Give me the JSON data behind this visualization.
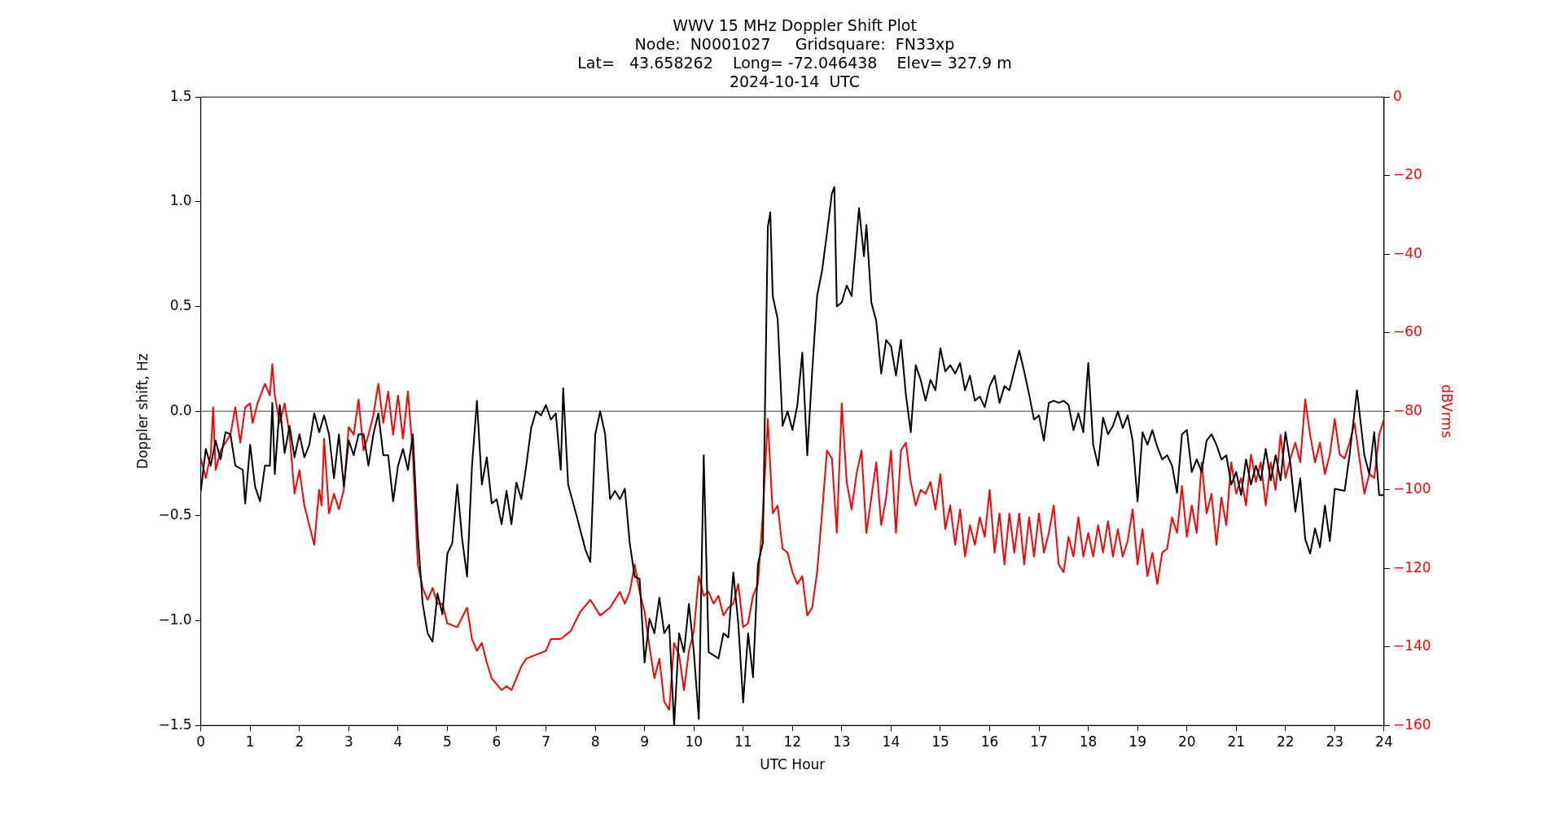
{
  "chart_data": {
    "type": "line",
    "title": "WWV 15 MHz Doppler Shift Plot",
    "subtitle": "Node:  N0001027     Gridsquare:  FN33xp\nLat=   43.658262    Long= -72.046438    Elev= 327.9 m\n2024-10-14  UTC",
    "xlabel": "UTC Hour",
    "ylabel": "Doppler shift, Hz",
    "y2label": "dBVrms",
    "xlim": [
      0,
      24
    ],
    "xticks": [
      0,
      1,
      2,
      3,
      4,
      5,
      6,
      7,
      8,
      9,
      10,
      11,
      12,
      13,
      14,
      15,
      16,
      17,
      18,
      19,
      20,
      21,
      22,
      23,
      24
    ],
    "ylim": [
      -1.5,
      1.5
    ],
    "yticks": [
      {
        "value": -1.5,
        "label": "−1.5"
      },
      {
        "value": -1,
        "label": "−1.0"
      },
      {
        "value": -0.5,
        "label": "−0.5"
      },
      {
        "value": 0,
        "label": "0.0"
      },
      {
        "value": 0.5,
        "label": "0.5"
      },
      {
        "value": 1,
        "label": "1.0"
      },
      {
        "value": 1.5,
        "label": "1.5"
      }
    ],
    "y2lim": [
      -160,
      0
    ],
    "y2ticks": [
      {
        "value": -160,
        "label": "−160"
      },
      {
        "value": -140,
        "label": "−140"
      },
      {
        "value": -120,
        "label": "−120"
      },
      {
        "value": -100,
        "label": "−100"
      },
      {
        "value": -80,
        "label": "−80"
      },
      {
        "value": -60,
        "label": "−60"
      },
      {
        "value": -40,
        "label": "−40"
      },
      {
        "value": -20,
        "label": "−20"
      },
      0
    ],
    "grid": false,
    "legend": false,
    "marker": "none",
    "line_style": "solid",
    "ref_lines": [
      {
        "axis": "y",
        "value": 0,
        "color": "#808080"
      }
    ],
    "series": [
      {
        "color": "#000000",
        "x": [
          0,
          0.1,
          0.2,
          0.3,
          0.4,
          0.5,
          0.6,
          0.7,
          0.85,
          0.9,
          1.0,
          1.1,
          1.2,
          1.3,
          1.4,
          1.45,
          1.5,
          1.6,
          1.7,
          1.8,
          1.9,
          2.0,
          2.1,
          2.2,
          2.3,
          2.4,
          2.5,
          2.6,
          2.7,
          2.8,
          2.9,
          3.0,
          3.1,
          3.2,
          3.3,
          3.4,
          3.5,
          3.6,
          3.7,
          3.8,
          3.9,
          4.0,
          4.1,
          4.2,
          4.3,
          4.4,
          4.5,
          4.6,
          4.7,
          4.8,
          4.9,
          5.0,
          5.1,
          5.2,
          5.3,
          5.4,
          5.5,
          5.6,
          5.7,
          5.8,
          5.9,
          6.0,
          6.1,
          6.2,
          6.3,
          6.4,
          6.5,
          6.6,
          6.7,
          6.8,
          6.9,
          7.0,
          7.1,
          7.2,
          7.3,
          7.35,
          7.45,
          7.6,
          7.8,
          7.9,
          8.0,
          8.1,
          8.2,
          8.3,
          8.4,
          8.5,
          8.6,
          8.7,
          8.8,
          8.9,
          9.0,
          9.1,
          9.2,
          9.3,
          9.4,
          9.5,
          9.6,
          9.7,
          9.8,
          9.9,
          10.0,
          10.1,
          10.2,
          10.3,
          10.5,
          10.6,
          10.7,
          10.8,
          10.9,
          11.0,
          11.1,
          11.2,
          11.3,
          11.4,
          11.5,
          11.55,
          11.6,
          11.7,
          11.8,
          11.9,
          12.0,
          12.1,
          12.2,
          12.3,
          12.4,
          12.5,
          12.6,
          12.7,
          12.8,
          12.85,
          12.9,
          13.0,
          13.1,
          13.2,
          13.3,
          13.35,
          13.45,
          13.5,
          13.6,
          13.7,
          13.8,
          13.9,
          14.0,
          14.1,
          14.2,
          14.3,
          14.4,
          14.5,
          14.6,
          14.7,
          14.8,
          14.9,
          15.0,
          15.1,
          15.2,
          15.3,
          15.4,
          15.5,
          15.6,
          15.7,
          15.8,
          15.9,
          16.0,
          16.1,
          16.2,
          16.3,
          16.4,
          16.6,
          16.7,
          16.8,
          16.9,
          17.0,
          17.1,
          17.2,
          17.3,
          17.4,
          17.5,
          17.6,
          17.7,
          17.8,
          17.9,
          18.0,
          18.1,
          18.2,
          18.3,
          18.4,
          18.5,
          18.6,
          18.7,
          18.8,
          18.9,
          19.0,
          19.1,
          19.2,
          19.3,
          19.4,
          19.5,
          19.6,
          19.7,
          19.8,
          19.9,
          20.0,
          20.1,
          20.2,
          20.3,
          20.4,
          20.5,
          20.6,
          20.7,
          20.8,
          20.9,
          21.0,
          21.1,
          21.2,
          21.3,
          21.4,
          21.5,
          21.6,
          21.7,
          21.8,
          21.9,
          22.0,
          22.1,
          22.2,
          22.3,
          22.4,
          22.5,
          22.6,
          22.7,
          22.8,
          22.9,
          23.0,
          23.2,
          23.3,
          23.45,
          23.6,
          23.7,
          23.8,
          23.9,
          24.0
        ],
        "values": [
          -0.38,
          -0.18,
          -0.26,
          -0.14,
          -0.23,
          -0.1,
          -0.11,
          -0.26,
          -0.28,
          -0.44,
          -0.16,
          -0.36,
          -0.43,
          -0.26,
          -0.26,
          0.04,
          -0.3,
          0.03,
          -0.2,
          -0.07,
          -0.22,
          -0.11,
          -0.22,
          -0.16,
          -0.01,
          -0.1,
          -0.02,
          -0.11,
          -0.32,
          -0.11,
          -0.36,
          -0.14,
          -0.21,
          -0.11,
          -0.11,
          -0.26,
          -0.11,
          -0.01,
          -0.21,
          -0.21,
          -0.43,
          -0.26,
          -0.18,
          -0.28,
          -0.11,
          -0.59,
          -0.92,
          -1.06,
          -1.1,
          -0.87,
          -0.97,
          -0.68,
          -0.63,
          -0.35,
          -0.61,
          -0.79,
          -0.26,
          0.05,
          -0.35,
          -0.22,
          -0.44,
          -0.42,
          -0.54,
          -0.38,
          -0.54,
          -0.34,
          -0.42,
          -0.26,
          -0.08,
          0.0,
          -0.02,
          0.03,
          -0.04,
          -0.01,
          -0.28,
          0.11,
          -0.35,
          -0.48,
          -0.66,
          -0.72,
          -0.11,
          0.0,
          -0.11,
          -0.42,
          -0.38,
          -0.42,
          -0.37,
          -0.63,
          -0.79,
          -0.8,
          -1.2,
          -0.99,
          -1.06,
          -0.89,
          -1.06,
          -1.02,
          -1.5,
          -1.06,
          -1.15,
          -0.92,
          -1.15,
          -1.47,
          -0.21,
          -1.15,
          -1.18,
          -1.06,
          -1.08,
          -0.77,
          -1.01,
          -1.39,
          -1.06,
          -1.27,
          -0.73,
          -0.63,
          0.88,
          0.95,
          0.55,
          0.44,
          -0.07,
          0.0,
          -0.09,
          0.03,
          0.28,
          -0.21,
          0.19,
          0.55,
          0.67,
          0.85,
          1.04,
          1.07,
          0.5,
          0.52,
          0.6,
          0.55,
          0.83,
          0.97,
          0.74,
          0.89,
          0.52,
          0.43,
          0.18,
          0.34,
          0.31,
          0.17,
          0.34,
          0.08,
          -0.1,
          0.22,
          0.15,
          0.05,
          0.15,
          0.1,
          0.3,
          0.19,
          0.22,
          0.18,
          0.23,
          0.1,
          0.17,
          0.05,
          0.07,
          0.02,
          0.12,
          0.17,
          0.04,
          0.12,
          0.1,
          0.29,
          0.19,
          0.08,
          -0.04,
          -0.02,
          -0.14,
          0.04,
          0.05,
          0.04,
          0.05,
          0.03,
          -0.09,
          -0.01,
          -0.1,
          0.23,
          -0.16,
          -0.26,
          -0.03,
          -0.11,
          -0.07,
          0.0,
          -0.08,
          -0.02,
          -0.14,
          -0.43,
          -0.1,
          -0.16,
          -0.09,
          -0.17,
          -0.23,
          -0.21,
          -0.26,
          -0.39,
          -0.11,
          -0.09,
          -0.29,
          -0.23,
          -0.29,
          -0.14,
          -0.11,
          -0.16,
          -0.23,
          -0.21,
          -0.35,
          -0.29,
          -0.4,
          -0.23,
          -0.35,
          -0.26,
          -0.33,
          -0.18,
          -0.33,
          -0.21,
          -0.33,
          -0.1,
          -0.25,
          -0.48,
          -0.32,
          -0.61,
          -0.68,
          -0.56,
          -0.65,
          -0.45,
          -0.62,
          -0.37,
          -0.38,
          -0.21,
          0.1,
          -0.21,
          -0.3,
          -0.1,
          -0.4,
          -0.4
        ]
      },
      {
        "color": "#ff0000",
        "axis": "y2",
        "x": [
          0,
          0.1,
          0.2,
          0.25,
          0.3,
          0.4,
          0.5,
          0.6,
          0.7,
          0.8,
          0.9,
          1.0,
          1.05,
          1.15,
          1.3,
          1.4,
          1.45,
          1.5,
          1.6,
          1.7,
          1.8,
          1.9,
          2.0,
          2.1,
          2.2,
          2.3,
          2.4,
          2.45,
          2.5,
          2.6,
          2.7,
          2.8,
          2.9,
          3.0,
          3.1,
          3.2,
          3.3,
          3.4,
          3.5,
          3.6,
          3.7,
          3.8,
          3.9,
          4.0,
          4.1,
          4.2,
          4.3,
          4.4,
          4.5,
          4.6,
          4.7,
          4.8,
          4.9,
          5.0,
          5.2,
          5.4,
          5.5,
          5.6,
          5.7,
          5.8,
          5.9,
          6.1,
          6.2,
          6.3,
          6.5,
          6.6,
          6.8,
          7.0,
          7.1,
          7.3,
          7.5,
          7.7,
          7.9,
          8.1,
          8.3,
          8.5,
          8.6,
          8.7,
          8.8,
          8.9,
          9.0,
          9.1,
          9.2,
          9.3,
          9.4,
          9.5,
          9.6,
          9.7,
          9.8,
          9.9,
          10.0,
          10.1,
          10.2,
          10.3,
          10.4,
          10.5,
          10.6,
          10.7,
          10.8,
          10.9,
          11.0,
          11.1,
          11.2,
          11.3,
          11.4,
          11.5,
          11.6,
          11.7,
          11.8,
          11.9,
          12.0,
          12.1,
          12.2,
          12.3,
          12.4,
          12.5,
          12.6,
          12.7,
          12.8,
          12.9,
          13.0,
          13.1,
          13.2,
          13.3,
          13.4,
          13.5,
          13.6,
          13.7,
          13.8,
          13.9,
          14.0,
          14.1,
          14.2,
          14.3,
          14.4,
          14.5,
          14.6,
          14.7,
          14.8,
          14.9,
          15.0,
          15.1,
          15.2,
          15.3,
          15.4,
          15.5,
          15.6,
          15.7,
          15.8,
          15.9,
          16.0,
          16.1,
          16.2,
          16.3,
          16.4,
          16.5,
          16.6,
          16.7,
          16.8,
          16.9,
          17.0,
          17.1,
          17.2,
          17.3,
          17.4,
          17.5,
          17.6,
          17.7,
          17.8,
          17.9,
          18.0,
          18.1,
          18.2,
          18.3,
          18.4,
          18.5,
          18.6,
          18.7,
          18.8,
          18.9,
          19.0,
          19.1,
          19.2,
          19.3,
          19.4,
          19.5,
          19.6,
          19.7,
          19.8,
          19.9,
          20.0,
          20.1,
          20.2,
          20.3,
          20.4,
          20.5,
          20.6,
          20.7,
          20.8,
          20.9,
          21.0,
          21.1,
          21.2,
          21.3,
          21.4,
          21.5,
          21.6,
          21.7,
          21.8,
          21.9,
          22.0,
          22.1,
          22.2,
          22.3,
          22.4,
          22.5,
          22.6,
          22.7,
          22.8,
          22.9,
          23.0,
          23.1,
          23.2,
          23.3,
          23.4,
          23.5,
          23.6,
          23.7,
          23.8,
          23.9,
          24.0
        ],
        "values": [
          -92,
          -97,
          -91,
          -79,
          -95,
          -90,
          -88,
          -86,
          -79,
          -88,
          -79,
          -78,
          -83,
          -78,
          -73,
          -76,
          -68,
          -76,
          -83,
          -78,
          -86,
          -101,
          -95,
          -104,
          -109,
          -114,
          -100,
          -104,
          -87,
          -106,
          -101,
          -105,
          -100,
          -84,
          -86,
          -77,
          -90,
          -86,
          -81,
          -73,
          -83,
          -75,
          -86,
          -76,
          -87,
          -75,
          -91,
          -119,
          -125,
          -128,
          -125,
          -129,
          -129,
          -134,
          -135,
          -130,
          -138,
          -141,
          -139,
          -144,
          -148,
          -151,
          -150,
          -151,
          -145,
          -143,
          -142,
          -141,
          -138,
          -138,
          -136,
          -131,
          -128,
          -132,
          -130,
          -126,
          -129,
          -126,
          -119,
          -126,
          -131,
          -140,
          -148,
          -143,
          -154,
          -156,
          -139,
          -142,
          -151,
          -141,
          -136,
          -122,
          -127,
          -126,
          -129,
          -127,
          -132,
          -130,
          -129,
          -124,
          -135,
          -134,
          -127,
          -124,
          -106,
          -82,
          -106,
          -104,
          -115,
          -116,
          -121,
          -124,
          -122,
          -132,
          -130,
          -121,
          -106,
          -90,
          -92,
          -111,
          -78,
          -98,
          -105,
          -96,
          -90,
          -111,
          -102,
          -93,
          -109,
          -102,
          -90,
          -111,
          -90,
          -88,
          -98,
          -104,
          -100,
          -101,
          -98,
          -105,
          -96,
          -110,
          -104,
          -114,
          -105,
          -117,
          -109,
          -114,
          -107,
          -112,
          -100,
          -116,
          -106,
          -119,
          -106,
          -116,
          -106,
          -119,
          -107,
          -117,
          -106,
          -116,
          -111,
          -104,
          -119,
          -121,
          -112,
          -117,
          -107,
          -117,
          -111,
          -117,
          -109,
          -116,
          -108,
          -117,
          -110,
          -117,
          -113,
          -105,
          -119,
          -110,
          -122,
          -116,
          -124,
          -116,
          -115,
          -107,
          -111,
          -99,
          -112,
          -104,
          -111,
          -93,
          -106,
          -101,
          -114,
          -102,
          -109,
          -93,
          -101,
          -97,
          -104,
          -91,
          -98,
          -93,
          -104,
          -93,
          -100,
          -86,
          -97,
          -92,
          -88,
          -93,
          -77,
          -86,
          -93,
          -88,
          -96,
          -91,
          -82,
          -91,
          -92,
          -88,
          -83,
          -92,
          -101,
          -96,
          -97,
          -86,
          -82
        ]
      }
    ]
  }
}
